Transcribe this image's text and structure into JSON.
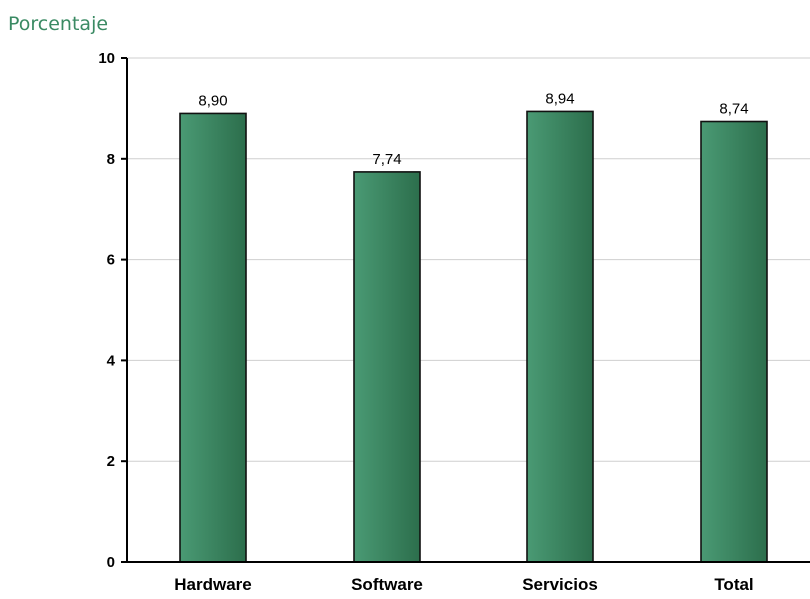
{
  "chart_data": {
    "type": "bar",
    "ylabel": "Porcentaje",
    "xlabel": "",
    "categories": [
      "Hardware",
      "Software",
      "Servicios",
      "Total"
    ],
    "values": [
      8.9,
      7.74,
      8.94,
      8.74
    ],
    "value_labels": [
      "8,90",
      "7,74",
      "8,94",
      "8,74"
    ],
    "ylim": [
      0,
      10
    ],
    "yticks": [
      0,
      2,
      4,
      6,
      8,
      10
    ],
    "ytick_labels": [
      "0",
      "2",
      "4",
      "6",
      "8",
      "10"
    ],
    "grid": true,
    "legend": "none",
    "colors": {
      "bar_dark": "#2c6e4c",
      "bar_light": "#4a9a74",
      "title": "#3a8a63"
    }
  }
}
